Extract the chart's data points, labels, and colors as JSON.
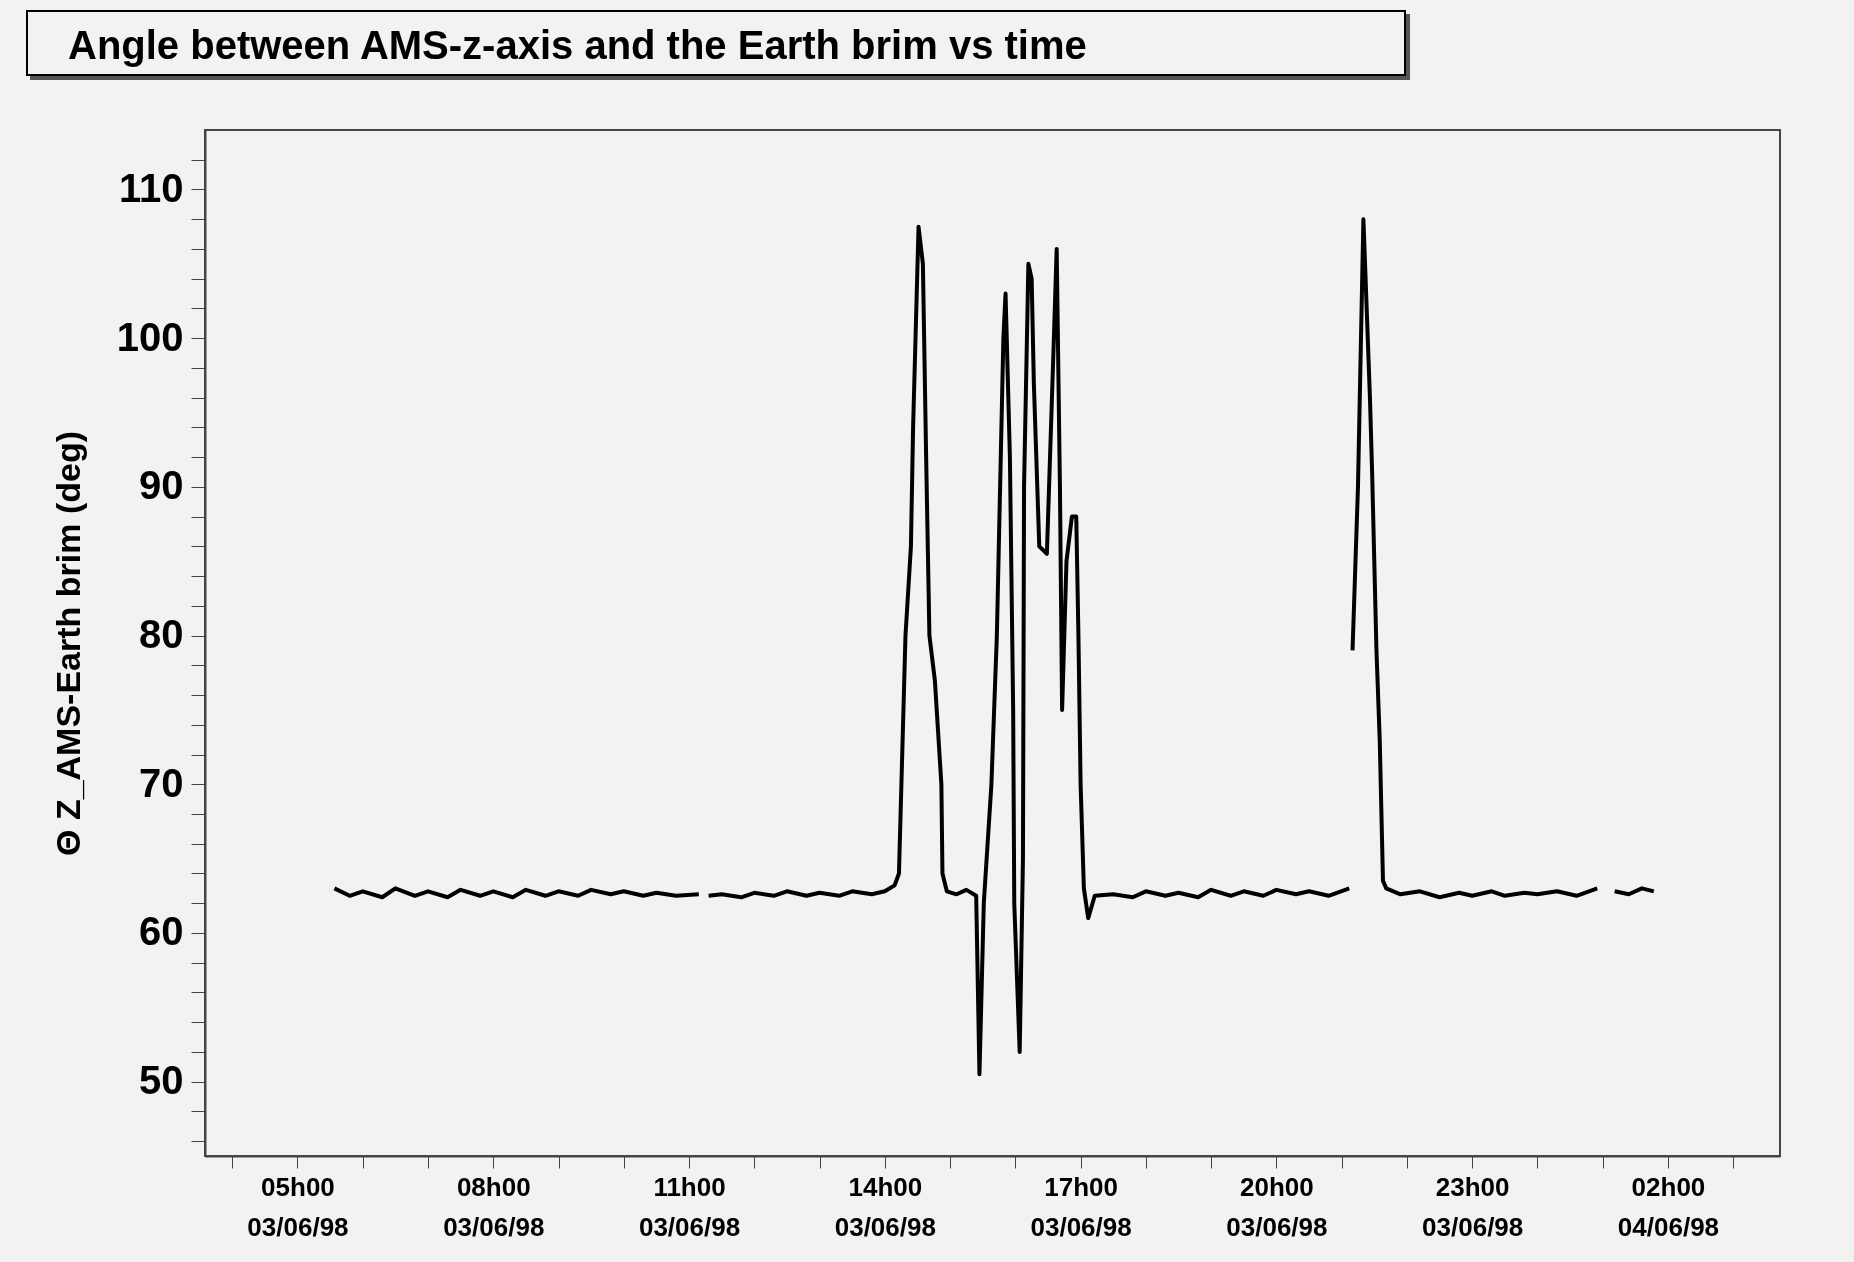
{
  "chart_data": {
    "type": "line",
    "title": "Angle between AMS-z-axis and the Earth brim vs time",
    "ylabel": "Θ Z_AMS-Earth brim (deg)",
    "x": [
      "1998-06-03T05:34",
      "1998-06-03T05:48",
      "1998-06-03T06:00",
      "1998-06-03T06:18",
      "1998-06-03T06:30",
      "1998-06-03T06:48",
      "1998-06-03T07:00",
      "1998-06-03T07:18",
      "1998-06-03T07:30",
      "1998-06-03T07:48",
      "1998-06-03T08:00",
      "1998-06-03T08:18",
      "1998-06-03T08:30",
      "1998-06-03T08:48",
      "1998-06-03T09:00",
      "1998-06-03T09:18",
      "1998-06-03T09:30",
      "1998-06-03T09:48",
      "1998-06-03T10:00",
      "1998-06-03T10:18",
      "1998-06-03T10:30",
      "1998-06-03T10:48",
      "1998-06-03T11:09",
      "1998-06-03T11:13",
      "1998-06-03T11:18",
      "1998-06-03T11:30",
      "1998-06-03T11:48",
      "1998-06-03T12:00",
      "1998-06-03T12:18",
      "1998-06-03T12:30",
      "1998-06-03T12:48",
      "1998-06-03T13:00",
      "1998-06-03T13:18",
      "1998-06-03T13:30",
      "1998-06-03T13:48",
      "1998-06-03T14:00",
      "1998-06-03T14:09",
      "1998-06-03T14:13",
      "1998-06-03T14:19",
      "1998-06-03T14:24",
      "1998-06-03T14:26",
      "1998-06-03T14:31",
      "1998-06-03T14:35",
      "1998-06-03T14:38",
      "1998-06-03T14:41",
      "1998-06-03T14:46",
      "1998-06-03T14:52",
      "1998-06-03T14:53",
      "1998-06-03T14:57",
      "1998-06-03T15:06",
      "1998-06-03T15:15",
      "1998-06-03T15:24",
      "1998-06-03T15:27",
      "1998-06-03T15:31",
      "1998-06-03T15:38",
      "1998-06-03T15:43",
      "1998-06-03T15:46",
      "1998-06-03T15:49",
      "1998-06-03T15:51",
      "1998-06-03T15:55",
      "1998-06-03T15:58",
      "1998-06-03T15:59",
      "1998-06-03T16:04",
      "1998-06-03T16:07",
      "1998-06-03T16:08",
      "1998-06-03T16:12",
      "1998-06-03T16:15",
      "1998-06-03T16:17",
      "1998-06-03T16:22",
      "1998-06-03T16:29",
      "1998-06-03T16:35",
      "1998-06-03T16:38",
      "1998-06-03T16:41",
      "1998-06-03T16:43",
      "1998-06-03T16:47",
      "1998-06-03T16:52",
      "1998-06-03T16:56",
      "1998-06-03T16:58",
      "1998-06-03T17:00",
      "1998-06-03T17:03",
      "1998-06-03T17:07",
      "1998-06-03T17:13",
      "1998-06-03T17:30",
      "1998-06-03T17:48",
      "1998-06-03T18:00",
      "1998-06-03T18:18",
      "1998-06-03T18:30",
      "1998-06-03T18:48",
      "1998-06-03T19:00",
      "1998-06-03T19:18",
      "1998-06-03T19:30",
      "1998-06-03T19:48",
      "1998-06-03T20:00",
      "1998-06-03T20:18",
      "1998-06-03T20:30",
      "1998-06-03T20:48",
      "1998-06-03T21:07",
      "1998-06-03T21:08",
      "1998-06-03T21:10",
      "1998-06-03T21:15",
      "1998-06-03T21:20",
      "1998-06-03T21:26",
      "1998-06-03T21:28",
      "1998-06-03T21:30",
      "1998-06-03T21:32",
      "1998-06-03T21:35",
      "1998-06-03T21:38",
      "1998-06-03T21:41",
      "1998-06-03T21:54",
      "1998-06-03T22:12",
      "1998-06-03T22:30",
      "1998-06-03T22:48",
      "1998-06-03T23:00",
      "1998-06-03T23:18",
      "1998-06-03T23:30",
      "1998-06-03T23:48",
      "1998-06-04T00:00",
      "1998-06-04T00:18",
      "1998-06-04T00:36",
      "1998-06-04T00:55",
      "1998-06-04T01:00",
      "1998-06-04T01:11",
      "1998-06-04T01:24",
      "1998-06-04T01:36",
      "1998-06-04T01:47"
    ],
    "values": [
      63.0,
      62.5,
      62.8,
      62.4,
      63.0,
      62.5,
      62.8,
      62.4,
      62.9,
      62.5,
      62.8,
      62.4,
      62.9,
      62.5,
      62.8,
      62.5,
      62.9,
      62.6,
      62.8,
      62.5,
      62.7,
      62.5,
      62.6,
      null,
      62.5,
      62.6,
      62.4,
      62.7,
      62.5,
      62.8,
      62.5,
      62.7,
      62.5,
      62.8,
      62.6,
      62.8,
      63.2,
      64,
      80,
      86,
      94,
      107.5,
      105,
      92,
      80,
      77,
      70,
      64,
      62.8,
      62.6,
      62.9,
      62.5,
      50.5,
      62,
      70,
      80,
      90,
      100,
      103,
      92,
      75,
      62,
      52,
      65,
      90,
      105,
      104,
      97,
      86,
      85.5,
      99,
      106,
      90,
      75,
      85,
      88,
      88,
      80,
      70,
      63,
      61,
      62.5,
      62.6,
      62.4,
      62.8,
      62.5,
      62.7,
      62.4,
      62.9,
      62.5,
      62.8,
      62.5,
      62.9,
      62.6,
      62.8,
      62.5,
      63.0,
      null,
      79,
      90,
      108,
      96,
      91,
      85,
      79,
      73,
      63.5,
      63,
      62.6,
      62.8,
      62.4,
      62.7,
      62.5,
      62.8,
      62.5,
      62.7,
      62.6,
      62.8,
      62.5,
      63.0,
      null,
      62.8,
      62.6,
      63.0,
      62.8
    ],
    "color": "#000000",
    "marker": "none",
    "line_style": "solid",
    "grid": false,
    "legend": false,
    "xlim": [
      "1998-06-03T03:35",
      "1998-06-04T03:43"
    ],
    "xticks": [
      {
        "value": "1998-06-03T04:00",
        "label": null
      },
      {
        "value": "1998-06-03T05:00",
        "label": "05h00\n03/06/98"
      },
      {
        "value": "1998-06-03T06:00",
        "label": null
      },
      {
        "value": "1998-06-03T07:00",
        "label": null
      },
      {
        "value": "1998-06-03T08:00",
        "label": "08h00\n03/06/98"
      },
      {
        "value": "1998-06-03T09:00",
        "label": null
      },
      {
        "value": "1998-06-03T10:00",
        "label": null
      },
      {
        "value": "1998-06-03T11:00",
        "label": "11h00\n03/06/98"
      },
      {
        "value": "1998-06-03T12:00",
        "label": null
      },
      {
        "value": "1998-06-03T13:00",
        "label": null
      },
      {
        "value": "1998-06-03T14:00",
        "label": "14h00\n03/06/98"
      },
      {
        "value": "1998-06-03T15:00",
        "label": null
      },
      {
        "value": "1998-06-03T16:00",
        "label": null
      },
      {
        "value": "1998-06-03T17:00",
        "label": "17h00\n03/06/98"
      },
      {
        "value": "1998-06-03T18:00",
        "label": null
      },
      {
        "value": "1998-06-03T19:00",
        "label": null
      },
      {
        "value": "1998-06-03T20:00",
        "label": "20h00\n03/06/98"
      },
      {
        "value": "1998-06-03T21:00",
        "label": null
      },
      {
        "value": "1998-06-03T22:00",
        "label": null
      },
      {
        "value": "1998-06-03T23:00",
        "label": "23h00\n03/06/98"
      },
      {
        "value": "1998-06-04T00:00",
        "label": null
      },
      {
        "value": "1998-06-04T01:00",
        "label": null
      },
      {
        "value": "1998-06-04T02:00",
        "label": "02h00\n04/06/98"
      },
      {
        "value": "1998-06-04T03:00",
        "label": null
      }
    ],
    "ylim": [
      45,
      114
    ],
    "yticks": [
      {
        "value": 46,
        "label": null
      },
      {
        "value": 48,
        "label": null
      },
      50,
      {
        "value": 52,
        "label": null
      },
      {
        "value": 54,
        "label": null
      },
      {
        "value": 56,
        "label": null
      },
      {
        "value": 58,
        "label": null
      },
      60,
      {
        "value": 62,
        "label": null
      },
      {
        "value": 64,
        "label": null
      },
      {
        "value": 66,
        "label": null
      },
      {
        "value": 68,
        "label": null
      },
      70,
      {
        "value": 72,
        "label": null
      },
      {
        "value": 74,
        "label": null
      },
      {
        "value": 76,
        "label": null
      },
      {
        "value": 78,
        "label": null
      },
      80,
      {
        "value": 82,
        "label": null
      },
      {
        "value": 84,
        "label": null
      },
      {
        "value": 86,
        "label": null
      },
      {
        "value": 88,
        "label": null
      },
      90,
      {
        "value": 92,
        "label": null
      },
      {
        "value": 94,
        "label": null
      },
      {
        "value": 96,
        "label": null
      },
      {
        "value": 98,
        "label": null
      },
      100,
      {
        "value": 102,
        "label": null
      },
      {
        "value": 104,
        "label": null
      },
      {
        "value": 106,
        "label": null
      },
      {
        "value": 108,
        "label": null
      },
      110,
      {
        "value": 112,
        "label": null
      }
    ]
  }
}
